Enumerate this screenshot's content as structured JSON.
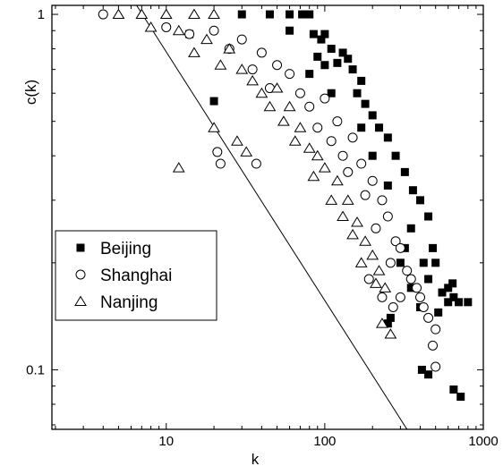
{
  "chart_data": {
    "type": "scatter",
    "xlabel": "k",
    "ylabel": "c(k)",
    "xscale": "log",
    "yscale": "log",
    "xlim": [
      1.9,
      1000
    ],
    "ylim": [
      0.068,
      1.06
    ],
    "xticks": [
      {
        "value": 10,
        "label": "10"
      },
      {
        "value": 100,
        "label": "100"
      },
      {
        "value": 1000,
        "label": "1000"
      }
    ],
    "yticks": [
      {
        "value": 0.1,
        "label": "0.1"
      },
      {
        "value": 1,
        "label": "1"
      }
    ],
    "legend_position": "left-lower",
    "reference_line": {
      "points": [
        [
          6.5,
          1.06
        ],
        [
          330,
          0.068
        ]
      ]
    },
    "series": [
      {
        "name": "Beijing",
        "marker": "filled-square",
        "points": [
          [
            30,
            1
          ],
          [
            45,
            1
          ],
          [
            60,
            1
          ],
          [
            72,
            1
          ],
          [
            80,
            1
          ],
          [
            14,
            0.88
          ],
          [
            60,
            0.9
          ],
          [
            85,
            0.88
          ],
          [
            100,
            0.88
          ],
          [
            95,
            0.85
          ],
          [
            110,
            0.8
          ],
          [
            130,
            0.78
          ],
          [
            140,
            0.75
          ],
          [
            120,
            0.73
          ],
          [
            90,
            0.76
          ],
          [
            100,
            0.72
          ],
          [
            80,
            0.68
          ],
          [
            150,
            0.7
          ],
          [
            170,
            0.65
          ],
          [
            110,
            0.6
          ],
          [
            160,
            0.6
          ],
          [
            180,
            0.56
          ],
          [
            200,
            0.52
          ],
          [
            170,
            0.48
          ],
          [
            220,
            0.48
          ],
          [
            250,
            0.45
          ],
          [
            200,
            0.4
          ],
          [
            280,
            0.4
          ],
          [
            320,
            0.36
          ],
          [
            250,
            0.33
          ],
          [
            360,
            0.32
          ],
          [
            400,
            0.3
          ],
          [
            450,
            0.27
          ],
          [
            350,
            0.25
          ],
          [
            480,
            0.22
          ],
          [
            500,
            0.2
          ],
          [
            320,
            0.22
          ],
          [
            450,
            0.18
          ],
          [
            600,
            0.17
          ],
          [
            550,
            0.165
          ],
          [
            650,
            0.16
          ],
          [
            700,
            0.155
          ],
          [
            800,
            0.155
          ],
          [
            400,
            0.15
          ],
          [
            600,
            0.155
          ],
          [
            520,
            0.145
          ],
          [
            640,
            0.175
          ],
          [
            420,
            0.2
          ],
          [
            300,
            0.2
          ],
          [
            350,
            0.17
          ],
          [
            20,
            0.57
          ],
          [
            260,
            0.14
          ],
          [
            250,
            0.135
          ],
          [
            410,
            0.1
          ],
          [
            450,
            0.097
          ],
          [
            650,
            0.088
          ],
          [
            720,
            0.084
          ]
        ]
      },
      {
        "name": "Shanghai",
        "marker": "open-circle",
        "points": [
          [
            4,
            1
          ],
          [
            10,
            0.92
          ],
          [
            14,
            0.88
          ],
          [
            20,
            0.9
          ],
          [
            30,
            0.85
          ],
          [
            25,
            0.8
          ],
          [
            40,
            0.78
          ],
          [
            35,
            0.7
          ],
          [
            50,
            0.72
          ],
          [
            60,
            0.68
          ],
          [
            45,
            0.62
          ],
          [
            70,
            0.6
          ],
          [
            80,
            0.55
          ],
          [
            100,
            0.58
          ],
          [
            120,
            0.5
          ],
          [
            90,
            0.48
          ],
          [
            110,
            0.44
          ],
          [
            150,
            0.45
          ],
          [
            130,
            0.4
          ],
          [
            170,
            0.38
          ],
          [
            140,
            0.36
          ],
          [
            200,
            0.34
          ],
          [
            180,
            0.31
          ],
          [
            230,
            0.3
          ],
          [
            250,
            0.27
          ],
          [
            210,
            0.25
          ],
          [
            280,
            0.23
          ],
          [
            300,
            0.22
          ],
          [
            260,
            0.2
          ],
          [
            330,
            0.19
          ],
          [
            350,
            0.18
          ],
          [
            380,
            0.17
          ],
          [
            400,
            0.16
          ],
          [
            420,
            0.15
          ],
          [
            450,
            0.14
          ],
          [
            500,
            0.13
          ],
          [
            37,
            0.38
          ],
          [
            21,
            0.41
          ],
          [
            22,
            0.38
          ],
          [
            190,
            0.18
          ],
          [
            230,
            0.16
          ],
          [
            270,
            0.15
          ],
          [
            300,
            0.16
          ],
          [
            480,
            0.117
          ],
          [
            500,
            0.102
          ]
        ]
      },
      {
        "name": "Nanjing",
        "marker": "open-triangle",
        "points": [
          [
            5,
            1
          ],
          [
            7,
            1
          ],
          [
            10,
            1
          ],
          [
            15,
            1
          ],
          [
            20,
            1
          ],
          [
            8,
            0.92
          ],
          [
            12,
            0.9
          ],
          [
            18,
            0.85
          ],
          [
            25,
            0.8
          ],
          [
            15,
            0.78
          ],
          [
            22,
            0.72
          ],
          [
            30,
            0.7
          ],
          [
            35,
            0.65
          ],
          [
            40,
            0.6
          ],
          [
            50,
            0.62
          ],
          [
            45,
            0.55
          ],
          [
            60,
            0.55
          ],
          [
            55,
            0.5
          ],
          [
            70,
            0.48
          ],
          [
            65,
            0.44
          ],
          [
            80,
            0.42
          ],
          [
            90,
            0.4
          ],
          [
            100,
            0.37
          ],
          [
            85,
            0.35
          ],
          [
            120,
            0.34
          ],
          [
            110,
            0.3
          ],
          [
            140,
            0.3
          ],
          [
            130,
            0.27
          ],
          [
            160,
            0.26
          ],
          [
            150,
            0.24
          ],
          [
            180,
            0.23
          ],
          [
            200,
            0.21
          ],
          [
            170,
            0.2
          ],
          [
            220,
            0.19
          ],
          [
            210,
            0.175
          ],
          [
            240,
            0.17
          ],
          [
            12,
            0.37
          ],
          [
            20,
            0.48
          ],
          [
            28,
            0.44
          ],
          [
            32,
            0.41
          ],
          [
            230,
            0.135
          ],
          [
            260,
            0.126
          ]
        ]
      }
    ]
  }
}
